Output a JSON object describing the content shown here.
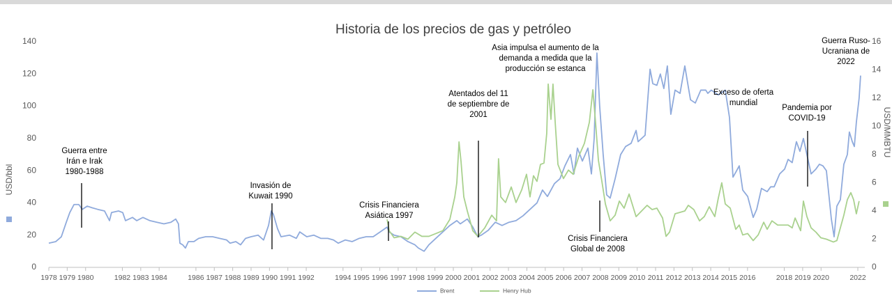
{
  "chart_data": {
    "type": "line",
    "title": "Historia de los precios de gas y petróleo",
    "y_label": "USD/bbl",
    "y2_label": "USD/MMBTU",
    "xlim": [
      1978,
      2022
    ],
    "xticks": [
      1978,
      1979,
      1980,
      1982,
      1983,
      1984,
      1986,
      1987,
      1988,
      1989,
      1990,
      1991,
      1992,
      1994,
      1995,
      1996,
      1997,
      1998,
      1999,
      2000,
      2001,
      2002,
      2003,
      2004,
      2005,
      2006,
      2007,
      2008,
      2009,
      2010,
      2011,
      2012,
      2013,
      2014,
      2015,
      2016,
      2018,
      2019,
      2020,
      2022
    ],
    "ylim": [
      0,
      140
    ],
    "yticks": [
      0,
      20,
      40,
      60,
      80,
      100,
      120,
      140
    ],
    "y2lim": [
      0,
      16
    ],
    "y2ticks": [
      0,
      2,
      4,
      6,
      8,
      10,
      12,
      14,
      16
    ],
    "grid": false,
    "legend": "bottom",
    "series": [
      {
        "name": "Brent",
        "color": "#8faadc",
        "x": [
          1978.0,
          1978.38,
          1978.68,
          1978.95,
          1979.14,
          1979.37,
          1979.63,
          1979.82,
          1980.09,
          1980.35,
          1980.66,
          1981.03,
          1981.3,
          1981.41,
          1981.79,
          1982.02,
          1982.17,
          1982.55,
          1982.78,
          1983.12,
          1983.5,
          1983.88,
          1984.26,
          1984.64,
          1984.9,
          1985.05,
          1985.13,
          1985.28,
          1985.43,
          1985.59,
          1985.89,
          1986.15,
          1986.53,
          1986.91,
          1987.29,
          1987.67,
          1987.86,
          1988.17,
          1988.43,
          1988.7,
          1989.0,
          1989.38,
          1989.68,
          1989.95,
          1990.1,
          1990.21,
          1990.44,
          1990.63,
          1991.09,
          1991.46,
          1991.65,
          1992.03,
          1992.41,
          1992.79,
          1993.17,
          1993.48,
          1993.74,
          1994.12,
          1994.5,
          1994.88,
          1995.26,
          1995.64,
          1996.02,
          1996.4,
          1996.51,
          1996.78,
          1997.15,
          1997.53,
          1997.91,
          1998.1,
          1998.41,
          1998.67,
          1999.05,
          1999.43,
          1999.81,
          2000.19,
          2000.38,
          2000.76,
          2001.06,
          2001.33,
          2001.52,
          2001.9,
          2002.28,
          2002.65,
          2003.03,
          2003.41,
          2003.79,
          2004.17,
          2004.55,
          2004.85,
          2005.12,
          2005.5,
          2005.8,
          2006.07,
          2006.37,
          2006.56,
          2006.75,
          2007.02,
          2007.32,
          2007.51,
          2007.66,
          2007.81,
          2007.96,
          2008.15,
          2008.34,
          2008.53,
          2008.8,
          2009.1,
          2009.37,
          2009.67,
          2009.94,
          2010.05,
          2010.43,
          2010.7,
          2010.85,
          2011.07,
          2011.26,
          2011.45,
          2011.64,
          2011.83,
          2012.06,
          2012.33,
          2012.59,
          2012.78,
          2012.9,
          2013.16,
          2013.46,
          2013.73,
          2013.84,
          2014.03,
          2014.41,
          2014.79,
          2015.02,
          2015.21,
          2015.36,
          2015.55,
          2015.74,
          2016.01,
          2016.31,
          2016.5,
          2016.76,
          2017.07,
          2017.26,
          2017.45,
          2017.75,
          2018.02,
          2018.21,
          2018.43,
          2018.66,
          2018.85,
          2019.04,
          2019.23,
          2019.46,
          2019.72,
          2019.91,
          2020.1,
          2020.29,
          2020.56,
          2020.71,
          2020.86,
          2021.05,
          2021.24,
          2021.43,
          2021.54,
          2021.7,
          2021.81,
          2021.92,
          2022.07,
          2022.15
        ],
        "values": [
          15,
          16,
          19,
          28,
          34,
          39,
          39,
          36,
          38,
          37,
          36,
          35,
          29,
          34,
          35,
          34,
          29,
          31,
          29,
          31,
          29,
          28,
          27,
          28,
          30,
          27,
          15,
          14,
          12,
          16,
          16,
          18,
          19,
          19,
          18,
          17,
          15,
          16,
          14,
          18,
          19,
          20,
          17,
          26,
          35,
          33,
          24,
          19,
          20,
          18,
          22,
          19,
          20,
          18,
          18,
          17,
          15,
          17,
          16,
          18,
          19,
          19,
          22,
          25,
          22,
          20,
          19,
          16,
          14,
          12,
          10,
          14,
          18,
          22,
          26,
          29,
          27,
          30,
          25,
          19,
          20,
          23,
          28,
          26,
          28,
          29,
          32,
          36,
          40,
          48,
          44,
          52,
          55,
          63,
          70,
          58,
          74,
          66,
          74,
          58,
          80,
          133,
          100,
          70,
          45,
          43,
          55,
          70,
          75,
          77,
          85,
          78,
          82,
          123,
          114,
          113,
          120,
          111,
          125,
          95,
          110,
          108,
          125,
          112,
          104,
          102,
          110,
          110,
          108,
          110,
          107,
          110,
          93,
          56,
          59,
          63,
          48,
          44,
          31,
          36,
          49,
          47,
          50,
          50,
          58,
          61,
          67,
          65,
          78,
          72,
          80,
          70,
          58,
          61,
          64,
          63,
          60,
          30,
          19,
          38,
          42,
          64,
          70,
          84,
          78,
          75,
          90,
          105,
          119
        ]
      },
      {
        "name": "Henry Hub",
        "color": "#a9d18e",
        "axis": "y2",
        "x": [
          1996.4,
          1996.51,
          1996.78,
          1997.15,
          1997.53,
          1997.91,
          1998.29,
          1998.67,
          1999.05,
          1999.43,
          1999.81,
          2000.08,
          2000.19,
          2000.31,
          2000.42,
          2000.57,
          2000.76,
          2001.06,
          2001.33,
          2001.71,
          2002.09,
          2002.35,
          2002.46,
          2002.58,
          2002.84,
          2003.15,
          2003.41,
          2003.72,
          2003.98,
          2004.17,
          2004.36,
          2004.55,
          2004.74,
          2004.93,
          2005.08,
          2005.16,
          2005.23,
          2005.31,
          2005.42,
          2005.54,
          2005.69,
          2005.99,
          2006.26,
          2006.52,
          2006.83,
          2007.13,
          2007.4,
          2007.59,
          2007.74,
          2007.89,
          2008.08,
          2008.27,
          2008.53,
          2008.8,
          2009.03,
          2009.29,
          2009.56,
          2009.75,
          2009.94,
          2010.24,
          2010.54,
          2010.81,
          2011.07,
          2011.38,
          2011.57,
          2011.76,
          2012.06,
          2012.33,
          2012.59,
          2012.78,
          2013.08,
          2013.39,
          2013.65,
          2013.92,
          2014.22,
          2014.41,
          2014.6,
          2014.79,
          2015.06,
          2015.36,
          2015.55,
          2015.74,
          2016.01,
          2016.31,
          2016.58,
          2016.88,
          2017.07,
          2017.33,
          2017.64,
          2017.9,
          2018.21,
          2018.43,
          2018.59,
          2018.89,
          2019.04,
          2019.23,
          2019.46,
          2019.72,
          2019.99,
          2020.29,
          2020.67,
          2020.86,
          2021.05,
          2021.24,
          2021.43,
          2021.62,
          2021.77,
          2021.92,
          2022.07
        ],
        "values": [
          3.4,
          2.6,
          2.1,
          2.2,
          2.0,
          2.5,
          2.2,
          2.2,
          2.4,
          2.6,
          3.4,
          5.0,
          6.0,
          8.9,
          7.5,
          5.0,
          4.0,
          2.6,
          2.2,
          2.8,
          3.7,
          3.3,
          7.7,
          5.0,
          4.6,
          5.7,
          4.6,
          5.5,
          6.6,
          5.0,
          6.5,
          6.1,
          7.3,
          7.4,
          9.5,
          13.0,
          11.8,
          10.5,
          13.0,
          10.3,
          7.3,
          6.3,
          6.9,
          6.6,
          7.9,
          8.8,
          10.3,
          12.6,
          10.2,
          7.6,
          6.1,
          4.5,
          3.3,
          3.7,
          4.7,
          4.2,
          5.2,
          4.4,
          3.6,
          4.0,
          4.4,
          4.1,
          4.2,
          3.5,
          2.2,
          2.5,
          3.8,
          3.9,
          4.0,
          4.4,
          4.1,
          3.3,
          3.6,
          4.3,
          3.6,
          4.9,
          6.0,
          4.5,
          4.2,
          2.7,
          3.0,
          2.3,
          2.4,
          1.9,
          2.3,
          3.2,
          2.7,
          3.3,
          3.0,
          3.0,
          3.0,
          2.8,
          3.5,
          2.6,
          4.7,
          3.6,
          2.8,
          2.5,
          2.1,
          2.0,
          1.8,
          1.9,
          2.8,
          3.7,
          4.8,
          5.3,
          4.8,
          3.8,
          4.7
        ]
      }
    ],
    "annotations": [
      {
        "text": "Guerra entre Irán e Irak 1980-1988"
      },
      {
        "text": "Invasión de Kuwait 1990"
      },
      {
        "text": "Crisis Financiera Asiática 1997"
      },
      {
        "text": "Atentados del 11 de septiembre de 2001"
      },
      {
        "text": "Asia impulsa el aumento de la demanda a medida que la producción se estanca"
      },
      {
        "text": "Crisis Financiera Global de 2008"
      },
      {
        "text": "Exceso de oferta mundial"
      },
      {
        "text": "Pandemia por COVID-19"
      },
      {
        "text": "Guerra Ruso-Ucraniana de 2022"
      }
    ]
  }
}
